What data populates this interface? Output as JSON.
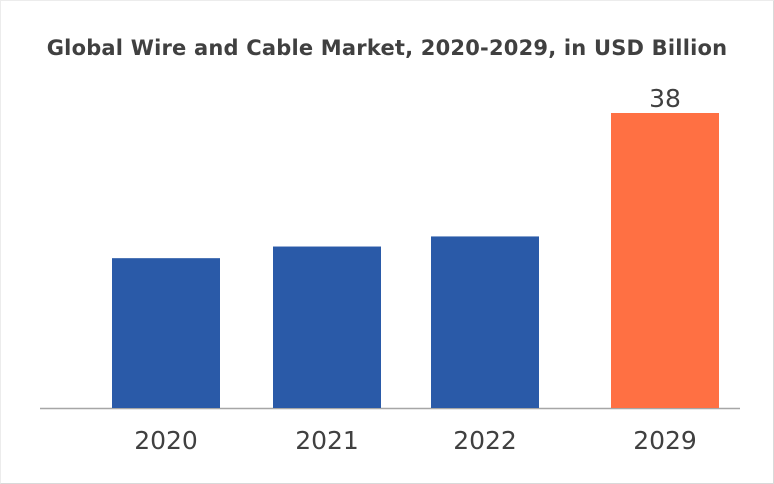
{
  "chart_data": {
    "type": "bar",
    "title": "Global Wire and Cable Market,  2020-2029, in USD Billion",
    "categories": [
      "2020",
      "2021",
      "2022",
      "2029"
    ],
    "values": [
      19.3,
      20.8,
      22.1,
      38
    ],
    "data_labels": [
      "",
      "",
      "",
      "38"
    ],
    "bar_colors": [
      "#2a5aa8",
      "#2a5aa8",
      "#2a5aa8",
      "#ff7043"
    ],
    "ylim": [
      0,
      40
    ],
    "grid": false,
    "legend": "none"
  }
}
